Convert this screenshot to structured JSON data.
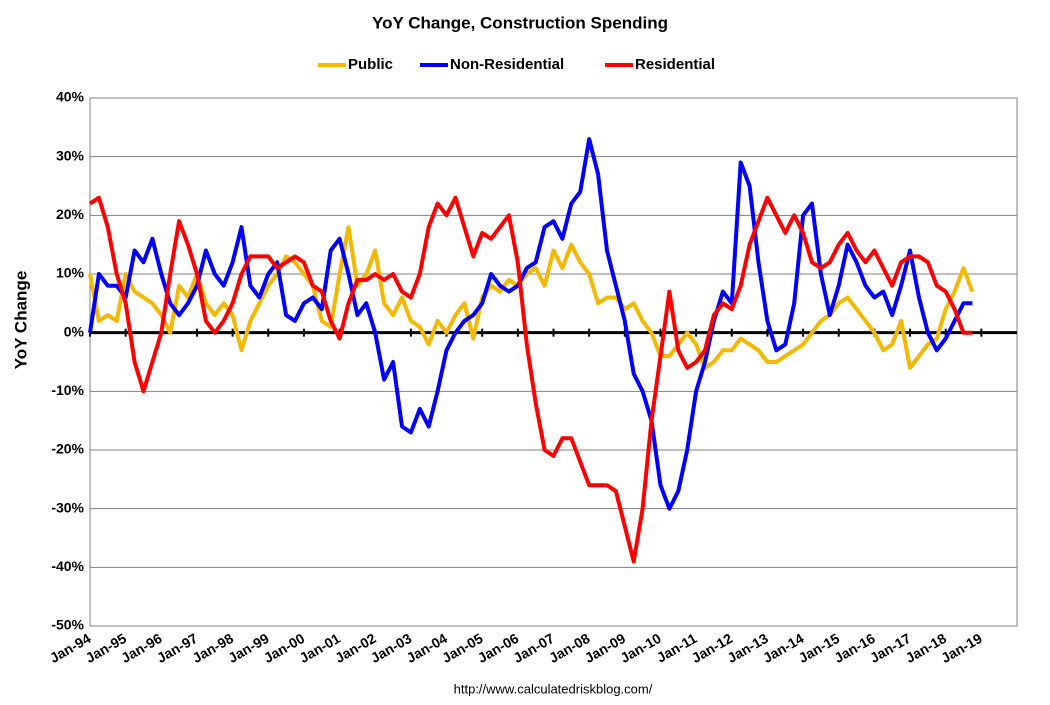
{
  "chart_data": {
    "type": "line",
    "title": "YoY Change,  Construction Spending",
    "y_label": "YoY Change",
    "source": "http://www.calculatedriskblog.com/",
    "categories": [
      "Jan-94",
      null,
      null,
      null,
      "Jan-95",
      null,
      null,
      null,
      "Jan-96",
      null,
      null,
      null,
      "Jan-97",
      null,
      null,
      null,
      "Jan-98",
      null,
      null,
      null,
      "Jan-99",
      null,
      null,
      null,
      "Jan-00",
      null,
      null,
      null,
      "Jan-01",
      null,
      null,
      null,
      "Jan-02",
      null,
      null,
      null,
      "Jan-03",
      null,
      null,
      null,
      "Jan-04",
      null,
      null,
      null,
      "Jan-05",
      null,
      null,
      null,
      "Jan-06",
      null,
      null,
      null,
      "Jan-07",
      null,
      null,
      null,
      "Jan-08",
      null,
      null,
      null,
      "Jan-09",
      null,
      null,
      null,
      "Jan-10",
      null,
      null,
      null,
      "Jan-11",
      null,
      null,
      null,
      "Jan-12",
      null,
      null,
      null,
      "Jan-13",
      null,
      null,
      null,
      "Jan-14",
      null,
      null,
      null,
      "Jan-15",
      null,
      null,
      null,
      "Jan-16",
      null,
      null,
      null,
      "Jan-17",
      null,
      null,
      null,
      "Jan-18",
      null,
      null,
      null,
      "Jan-19",
      null,
      null,
      null
    ],
    "series": [
      {
        "name": "Public",
        "color": "#f5b800",
        "values": [
          10,
          2,
          3,
          2,
          10,
          7,
          6,
          5,
          3,
          0,
          8,
          6,
          10,
          5,
          3,
          5,
          3,
          -3,
          2,
          5,
          8,
          10,
          13,
          12,
          10,
          8,
          2,
          1,
          10,
          18,
          8,
          10,
          14,
          5,
          3,
          6,
          2,
          1,
          -2,
          2,
          0,
          3,
          5,
          -1,
          6,
          8,
          7,
          9,
          8,
          10,
          11,
          8,
          14,
          11,
          15,
          12,
          10,
          5,
          6,
          6,
          4,
          5,
          2,
          0,
          -4,
          -4,
          -2,
          0,
          -2,
          -6,
          -5,
          -3,
          -3,
          -1,
          -2,
          -3,
          -5,
          -5,
          -4,
          -3,
          -2,
          0,
          2,
          3,
          5,
          6,
          4,
          2,
          0,
          -3,
          -2,
          2,
          -6,
          -4,
          -2,
          -1,
          4,
          7,
          11,
          7,
          null,
          null,
          null,
          null
        ]
      },
      {
        "name": "Non-Residential",
        "color": "#0000ff",
        "values": [
          0,
          10,
          8,
          8,
          6,
          14,
          12,
          16,
          10,
          5,
          3,
          5,
          8,
          14,
          10,
          8,
          12,
          18,
          8,
          6,
          10,
          12,
          3,
          2,
          5,
          6,
          4,
          14,
          16,
          10,
          3,
          5,
          0,
          -8,
          -5,
          -16,
          -17,
          -13,
          -16,
          -10,
          -3,
          0,
          2,
          3,
          5,
          10,
          8,
          7,
          8,
          11,
          12,
          18,
          19,
          16,
          22,
          24,
          33,
          27,
          14,
          8,
          2,
          -7,
          -10,
          -15,
          -26,
          -30,
          -27,
          -20,
          -10,
          -5,
          2,
          7,
          5,
          29,
          25,
          12,
          2,
          -3,
          -2,
          5,
          20,
          22,
          10,
          3,
          8,
          15,
          12,
          8,
          6,
          7,
          3,
          8,
          14,
          6,
          0,
          -3,
          -1,
          2,
          5,
          5,
          null,
          null,
          null,
          null
        ]
      },
      {
        "name": "Residential",
        "color": "#ff0000",
        "values": [
          22,
          23,
          18,
          10,
          5,
          -5,
          -10,
          -5,
          0,
          10,
          19,
          15,
          10,
          2,
          0,
          2,
          5,
          10,
          13,
          13,
          13,
          11,
          12,
          13,
          12,
          8,
          7,
          2,
          -1,
          5,
          9,
          9,
          10,
          9,
          10,
          7,
          6,
          10,
          18,
          22,
          20,
          23,
          18,
          13,
          17,
          16,
          18,
          20,
          12,
          -2,
          -12,
          -20,
          -21,
          -18,
          -18,
          -22,
          -26,
          -26,
          -26,
          -27,
          -33,
          -39,
          -30,
          -15,
          -4,
          7,
          -3,
          -6,
          -5,
          -3,
          3,
          5,
          4,
          8,
          15,
          19,
          23,
          20,
          17,
          20,
          17,
          12,
          11,
          12,
          15,
          17,
          14,
          12,
          14,
          11,
          8,
          12,
          13,
          13,
          12,
          8,
          7,
          4,
          0,
          0,
          null,
          null,
          null,
          null
        ]
      }
    ],
    "ylim": [
      -50,
      40
    ],
    "yticks": [
      {
        "value": -50,
        "label": "-50%"
      },
      {
        "value": -40,
        "label": "-40%"
      },
      {
        "value": -30,
        "label": "-30%"
      },
      {
        "value": -20,
        "label": "-20%"
      },
      {
        "value": -10,
        "label": "-10%"
      },
      {
        "value": 0,
        "label": "0%"
      },
      {
        "value": 10,
        "label": "10%"
      },
      {
        "value": 20,
        "label": "20%"
      },
      {
        "value": 30,
        "label": "30%"
      },
      {
        "value": 40,
        "label": "40%"
      }
    ],
    "grid": true
  }
}
